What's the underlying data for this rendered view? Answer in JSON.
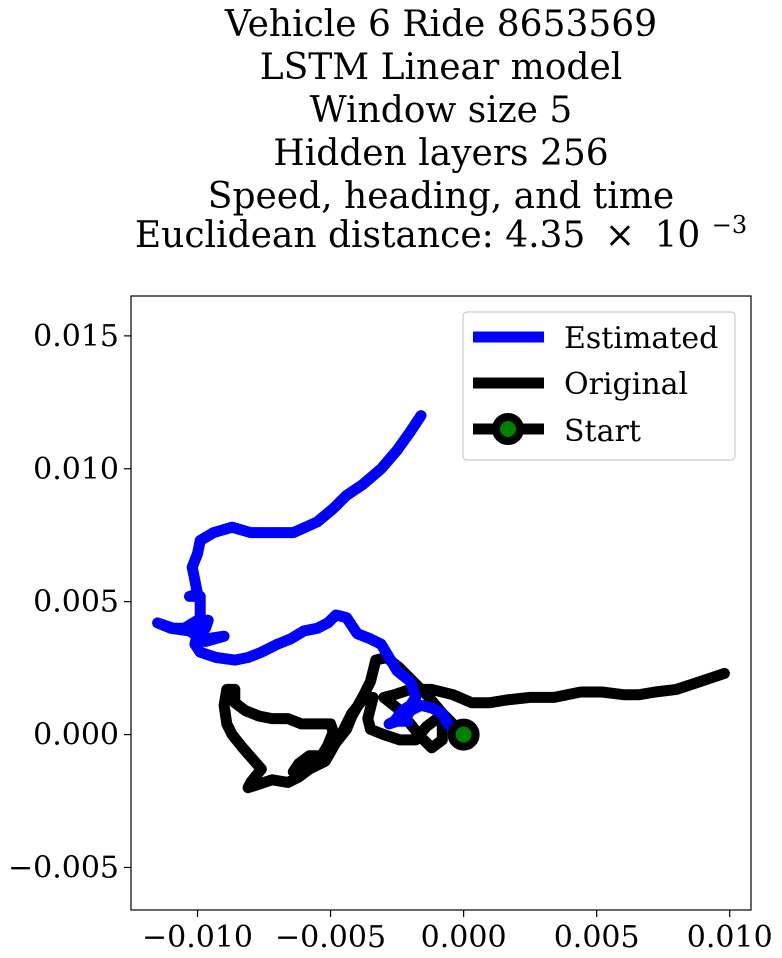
{
  "chart_data": {
    "type": "line",
    "title_lines": [
      "Vehicle 6 Ride 8653569",
      "LSTM Linear model",
      "Window size 5",
      "Hidden layers 256",
      "Speed, heading, and time"
    ],
    "distance_label": "Euclidean distance: 4.35",
    "distance_times": "×",
    "distance_base": "10",
    "distance_exponent": "−3",
    "xlim": [
      -0.0125,
      0.0108
    ],
    "ylim": [
      -0.0066,
      0.0165
    ],
    "xticks": [
      -0.01,
      -0.005,
      0.0,
      0.005,
      0.01
    ],
    "xtick_labels": [
      "−0.010",
      "−0.005",
      "0.000",
      "0.005",
      "0.010"
    ],
    "yticks": [
      -0.005,
      0.0,
      0.005,
      0.01,
      0.015
    ],
    "ytick_labels": [
      "−0.005",
      "0.000",
      "0.005",
      "0.010",
      "0.015"
    ],
    "grid": false,
    "legend_position": "top-right",
    "series": [
      {
        "name": "Estimated",
        "color": "#0000ff",
        "points": [
          [
            0.0,
            0.0
          ],
          [
            -0.0006,
            0.0004
          ],
          [
            -0.0008,
            0.0008
          ],
          [
            -0.0012,
            0.001
          ],
          [
            -0.0016,
            0.0011
          ],
          [
            -0.002,
            0.0009
          ],
          [
            -0.0022,
            0.0006
          ],
          [
            -0.0021,
            0.0005
          ],
          [
            -0.0025,
            0.0005
          ],
          [
            -0.0028,
            0.0004
          ],
          [
            -0.0026,
            0.0005
          ],
          [
            -0.0023,
            0.0009
          ],
          [
            -0.002,
            0.0011
          ],
          [
            -0.0018,
            0.0014
          ],
          [
            -0.002,
            0.002
          ],
          [
            -0.0025,
            0.0024
          ],
          [
            -0.0028,
            0.0029
          ],
          [
            -0.0031,
            0.0034
          ],
          [
            -0.0035,
            0.0036
          ],
          [
            -0.004,
            0.0038
          ],
          [
            -0.0044,
            0.0044
          ],
          [
            -0.0048,
            0.0045
          ],
          [
            -0.0051,
            0.0042
          ],
          [
            -0.0055,
            0.004
          ],
          [
            -0.006,
            0.0039
          ],
          [
            -0.0065,
            0.0036
          ],
          [
            -0.007,
            0.0034
          ],
          [
            -0.0076,
            0.0031
          ],
          [
            -0.0081,
            0.0029
          ],
          [
            -0.0086,
            0.0028
          ],
          [
            -0.0093,
            0.0029
          ],
          [
            -0.0099,
            0.0031
          ],
          [
            -0.0101,
            0.0034
          ],
          [
            -0.01,
            0.0038
          ],
          [
            -0.0097,
            0.004
          ],
          [
            -0.0096,
            0.0043
          ],
          [
            -0.01,
            0.0043
          ],
          [
            -0.0105,
            0.004
          ],
          [
            -0.0109,
            0.004
          ],
          [
            -0.0115,
            0.0042
          ],
          [
            -0.011,
            0.004
          ],
          [
            -0.0103,
            0.0039
          ],
          [
            -0.0097,
            0.0035
          ],
          [
            -0.009,
            0.0037
          ],
          [
            -0.0097,
            0.0036
          ],
          [
            -0.0099,
            0.0039
          ],
          [
            -0.0099,
            0.0047
          ],
          [
            -0.0099,
            0.0052
          ],
          [
            -0.0103,
            0.0052
          ],
          [
            -0.01,
            0.0053
          ],
          [
            -0.0101,
            0.0058
          ],
          [
            -0.0102,
            0.0063
          ],
          [
            -0.01,
            0.0068
          ],
          [
            -0.0099,
            0.0073
          ],
          [
            -0.0094,
            0.0076
          ],
          [
            -0.0087,
            0.0078
          ],
          [
            -0.008,
            0.0076
          ],
          [
            -0.0072,
            0.0076
          ],
          [
            -0.0064,
            0.0076
          ],
          [
            -0.0055,
            0.008
          ],
          [
            -0.0049,
            0.0085
          ],
          [
            -0.0044,
            0.009
          ],
          [
            -0.0038,
            0.0094
          ],
          [
            -0.0031,
            0.01
          ],
          [
            -0.0025,
            0.0107
          ],
          [
            -0.002,
            0.0114
          ],
          [
            -0.0016,
            0.012
          ]
        ]
      },
      {
        "name": "Original",
        "color": "#000000",
        "points": [
          [
            0.0,
            0.0
          ],
          [
            -0.0008,
            0.0008
          ],
          [
            -0.0013,
            0.0014
          ],
          [
            -0.0018,
            0.0019
          ],
          [
            -0.0024,
            0.0025
          ],
          [
            -0.0029,
            0.0029
          ],
          [
            -0.0033,
            0.0028
          ],
          [
            -0.0035,
            0.002
          ],
          [
            -0.0038,
            0.0014
          ],
          [
            -0.0042,
            0.0007
          ],
          [
            -0.0044,
            0.0002
          ],
          [
            -0.0048,
            -0.0003
          ],
          [
            -0.0052,
            -0.001
          ],
          [
            -0.0058,
            -0.0013
          ],
          [
            -0.0062,
            -0.0016
          ],
          [
            -0.0066,
            -0.0018
          ],
          [
            -0.0072,
            -0.0017
          ],
          [
            -0.0078,
            -0.0019
          ],
          [
            -0.0081,
            -0.002
          ],
          [
            -0.008,
            -0.0018
          ],
          [
            -0.0076,
            -0.0013
          ],
          [
            -0.0083,
            -0.0005
          ],
          [
            -0.0087,
            0.0
          ],
          [
            -0.0089,
            0.0004
          ],
          [
            -0.009,
            0.0011
          ],
          [
            -0.0089,
            0.0017
          ],
          [
            -0.0086,
            0.0017
          ],
          [
            -0.0086,
            0.0012
          ],
          [
            -0.0082,
            0.0009
          ],
          [
            -0.0077,
            0.0007
          ],
          [
            -0.0072,
            0.0006
          ],
          [
            -0.0066,
            0.0006
          ],
          [
            -0.0061,
            0.0004
          ],
          [
            -0.0055,
            0.0004
          ],
          [
            -0.005,
            0.0004
          ],
          [
            -0.0049,
            0.0001
          ],
          [
            -0.0051,
            -0.0004
          ],
          [
            -0.0054,
            -0.0009
          ],
          [
            -0.006,
            -0.0012
          ],
          [
            -0.0064,
            -0.0014
          ],
          [
            -0.0062,
            -0.0011
          ],
          [
            -0.0058,
            -0.0008
          ],
          [
            -0.0053,
            -0.0008
          ],
          [
            -0.0049,
            -0.0004
          ],
          [
            -0.0046,
            0.0
          ],
          [
            -0.0044,
            0.0004
          ],
          [
            -0.0042,
            0.0008
          ],
          [
            -0.0038,
            0.0013
          ],
          [
            -0.0034,
            0.0014
          ],
          [
            -0.0036,
            0.0006
          ],
          [
            -0.0035,
            0.0002
          ],
          [
            -0.003,
            0.0
          ],
          [
            -0.0024,
            -0.0002
          ],
          [
            -0.0018,
            -0.0002
          ],
          [
            -0.0014,
            0.0003
          ],
          [
            -0.001,
            0.0006
          ],
          [
            -0.0008,
            0.0005
          ],
          [
            -0.0008,
            -0.0002
          ],
          [
            -0.0012,
            -0.0005
          ],
          [
            -0.0016,
            -0.0001
          ],
          [
            -0.002,
            0.0004
          ],
          [
            -0.0025,
            0.001
          ],
          [
            -0.003,
            0.0014
          ],
          [
            -0.0026,
            0.0015
          ],
          [
            -0.002,
            0.0017
          ],
          [
            -0.0012,
            0.0017
          ],
          [
            -0.0004,
            0.0015
          ],
          [
            0.0003,
            0.0012
          ],
          [
            0.001,
            0.0012
          ],
          [
            0.0016,
            0.0013
          ],
          [
            0.0025,
            0.0014
          ],
          [
            0.0034,
            0.0014
          ],
          [
            0.0044,
            0.0016
          ],
          [
            0.0052,
            0.0016
          ],
          [
            0.006,
            0.0015
          ],
          [
            0.0066,
            0.0015
          ],
          [
            0.0072,
            0.0016
          ],
          [
            0.008,
            0.0017
          ],
          [
            0.0086,
            0.0019
          ],
          [
            0.0092,
            0.0021
          ],
          [
            0.0098,
            0.0023
          ]
        ]
      },
      {
        "name": "Start",
        "color": "#000000",
        "marker_face": "#008000",
        "points": [
          [
            0.0,
            0.0
          ]
        ]
      }
    ]
  }
}
